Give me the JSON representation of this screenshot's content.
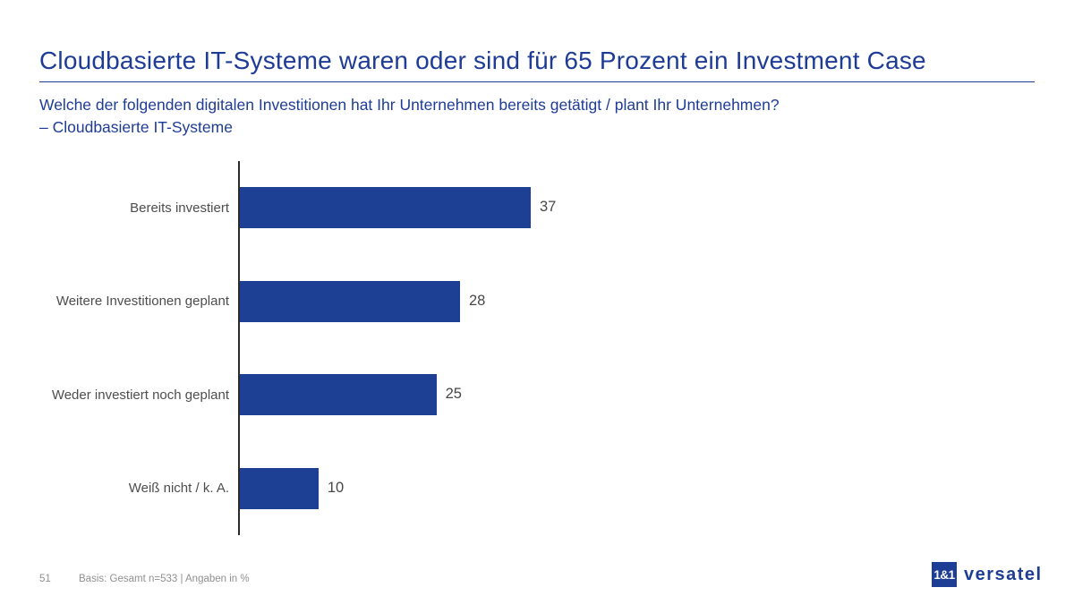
{
  "slide": {
    "title": "Cloudbasierte IT-Systeme waren oder sind für 65 Prozent ein Investment Case",
    "subtitle_line1": "Welche der folgenden digitalen Investitionen hat Ihr Unternehmen bereits getätigt / plant Ihr Unternehmen?",
    "subtitle_line2": "– Cloudbasierte IT-Systeme"
  },
  "chart_data": {
    "type": "bar",
    "orientation": "horizontal",
    "categories": [
      "Bereits investiert",
      "Weitere Investitionen geplant",
      "Weder investiert noch geplant",
      "Weiß nicht / k. A."
    ],
    "values": [
      37,
      28,
      25,
      10
    ],
    "value_labels": [
      "37",
      "28",
      "25",
      "10"
    ],
    "title": "Cloudbasierte IT-Systeme",
    "xlabel": "",
    "ylabel": "",
    "xlim": [
      0,
      42
    ],
    "unit": "%",
    "grid": false,
    "legend": false,
    "bar_color": "#1d4094",
    "axis_color": "#2b2b2b",
    "label_color": "#4d4d4d"
  },
  "footer": {
    "page_number": "51",
    "basis_note": "Basis: Gesamt n=533 | Angaben in %"
  },
  "logo": {
    "square_text": "1&1",
    "wordmark": "versatel"
  },
  "colors": {
    "title_blue": "#1e3c96",
    "bar_blue": "#1d4094",
    "text_gray": "#4d4d4d",
    "footer_gray": "#8f8f8f",
    "background": "#ffffff"
  }
}
